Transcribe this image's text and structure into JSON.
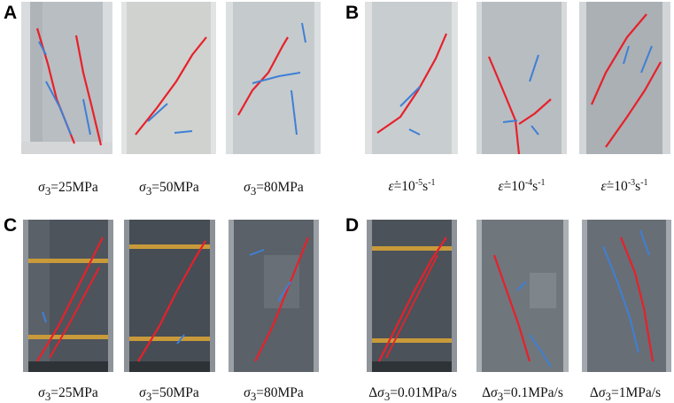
{
  "panels": [
    {
      "letter": "A",
      "style": "light",
      "captions": [
        {
          "prefix": "",
          "symbol": "σ",
          "sub": "3",
          "value": "=25MPa",
          "sup1": "",
          "mid": "",
          "sup2": ""
        },
        {
          "prefix": "",
          "symbol": "σ",
          "sub": "3",
          "value": "=50MPa",
          "sup1": "",
          "mid": "",
          "sup2": ""
        },
        {
          "prefix": "",
          "symbol": "σ",
          "sub": "3",
          "value": "=80MPa",
          "sup1": "",
          "mid": "",
          "sup2": ""
        }
      ]
    },
    {
      "letter": "B",
      "style": "light",
      "captions": [
        {
          "prefix": "",
          "symbol": "ε̇",
          "sub": "",
          "value": "=10",
          "sup1": "-5",
          "mid": "s",
          "sup2": "-1"
        },
        {
          "prefix": "",
          "symbol": "ε̇",
          "sub": "",
          "value": "=10",
          "sup1": "-4",
          "mid": "s",
          "sup2": "-1"
        },
        {
          "prefix": "",
          "symbol": "ε̇",
          "sub": "",
          "value": "=10",
          "sup1": "-3",
          "mid": "s",
          "sup2": "-1"
        }
      ]
    },
    {
      "letter": "C",
      "style": "dark",
      "captions": [
        {
          "prefix": "",
          "symbol": "σ",
          "sub": "3",
          "value": "=25MPa",
          "sup1": "",
          "mid": "",
          "sup2": ""
        },
        {
          "prefix": "",
          "symbol": "σ",
          "sub": "3",
          "value": "=50MPa",
          "sup1": "",
          "mid": "",
          "sup2": ""
        },
        {
          "prefix": "",
          "symbol": "σ",
          "sub": "3",
          "value": "=80MPa",
          "sup1": "",
          "mid": "",
          "sup2": ""
        }
      ]
    },
    {
      "letter": "D",
      "style": "dark",
      "captions": [
        {
          "prefix": "Δ",
          "symbol": "σ",
          "sub": "3",
          "value": "=0.01MPa/s",
          "sup1": "",
          "mid": "",
          "sup2": ""
        },
        {
          "prefix": "Δ",
          "symbol": "σ",
          "sub": "3",
          "value": "=0.1MPa/s",
          "sup1": "",
          "mid": "",
          "sup2": ""
        },
        {
          "prefix": "Δ",
          "symbol": "σ",
          "sub": "3",
          "value": "=1MPa/s",
          "sup1": "",
          "mid": "",
          "sup2": ""
        }
      ]
    }
  ],
  "colors": {
    "main_crack": "#e8202a",
    "secondary_crack": "#3f7fd6",
    "light_specimen": "#c9ced1",
    "dark_specimen": "#4a5057",
    "clamp_band": "#c99a3a"
  }
}
